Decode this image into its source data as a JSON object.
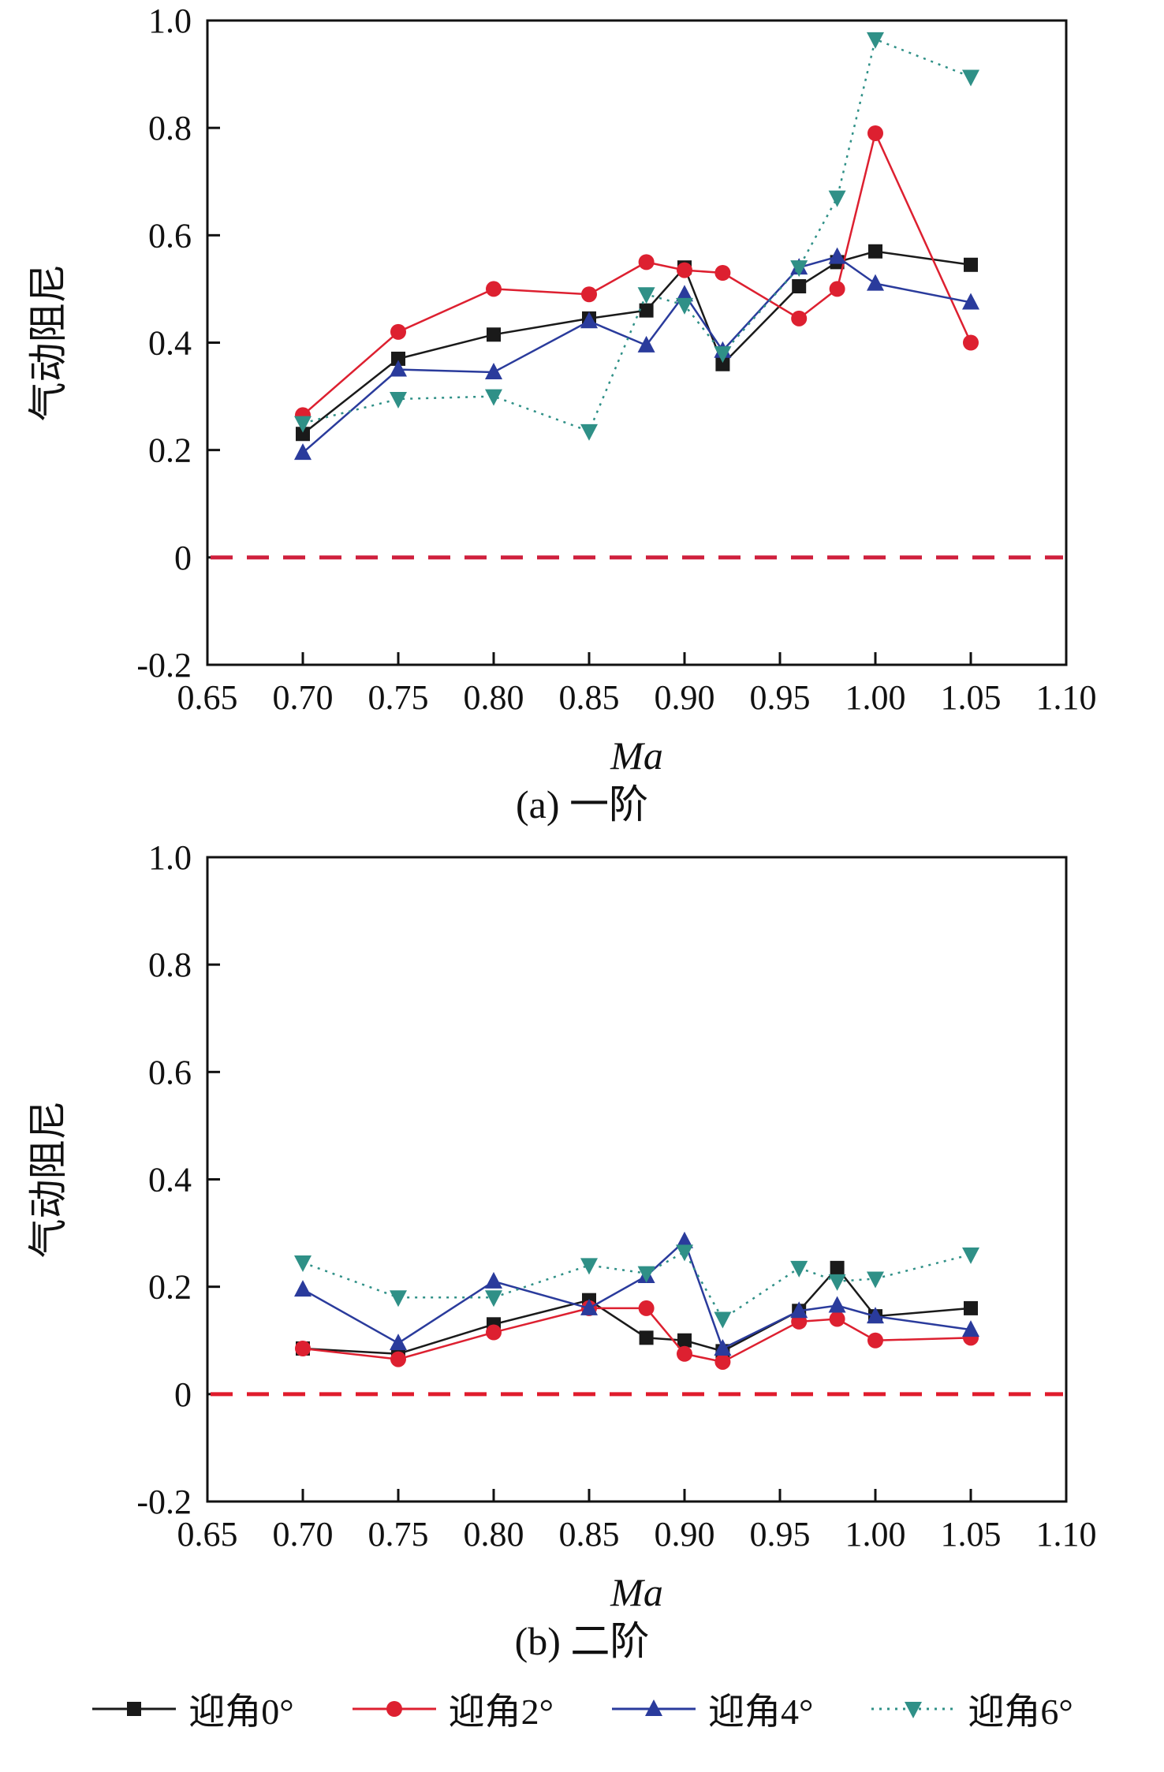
{
  "legend": [
    {
      "label": "迎角0°",
      "marker": "square",
      "color": "#1a1a1a",
      "line": "solid"
    },
    {
      "label": "迎角2°",
      "marker": "circle",
      "color": "#dd2030",
      "line": "solid"
    },
    {
      "label": "迎角4°",
      "marker": "triangle-up",
      "color": "#2a3b9c",
      "line": "solid"
    },
    {
      "label": "迎角6°",
      "marker": "triangle-down",
      "color": "#2f9087",
      "line": "dotted"
    }
  ],
  "chart_data": [
    {
      "type": "line",
      "title": "(a) 一阶",
      "xlabel": "Ma",
      "ylabel": "气动阻尼",
      "xlim": [
        0.65,
        1.1
      ],
      "ylim": [
        -0.2,
        1.0
      ],
      "xticks": [
        0.65,
        0.7,
        0.75,
        0.8,
        0.85,
        0.9,
        0.95,
        1.0,
        1.05,
        1.1
      ],
      "yticks": [
        -0.2,
        0,
        0.2,
        0.4,
        0.6,
        0.8,
        1.0
      ],
      "zero_line": true,
      "zero_line_color": "#cf1f3c",
      "x": [
        0.7,
        0.75,
        0.8,
        0.85,
        0.88,
        0.9,
        0.92,
        0.96,
        0.98,
        1.0,
        1.05
      ],
      "series": [
        {
          "name": "迎角0°",
          "marker": "square",
          "color": "#1a1a1a",
          "line": "solid",
          "values": [
            0.23,
            0.37,
            0.415,
            0.445,
            0.46,
            0.54,
            0.36,
            0.505,
            0.55,
            0.57,
            0.545
          ]
        },
        {
          "name": "迎角2°",
          "marker": "circle",
          "color": "#dd2030",
          "line": "solid",
          "values": [
            0.265,
            0.42,
            0.5,
            0.49,
            0.55,
            0.535,
            0.53,
            0.445,
            0.5,
            0.79,
            0.4
          ]
        },
        {
          "name": "迎角4°",
          "marker": "triangle-up",
          "color": "#2a3b9c",
          "line": "solid",
          "values": [
            0.195,
            0.35,
            0.345,
            0.44,
            0.395,
            0.49,
            0.385,
            0.54,
            0.56,
            0.51,
            0.475
          ]
        },
        {
          "name": "迎角6°",
          "marker": "triangle-down",
          "color": "#2f9087",
          "line": "dotted",
          "values": [
            0.25,
            0.295,
            0.3,
            0.235,
            0.49,
            0.47,
            0.38,
            0.54,
            0.67,
            0.965,
            0.895
          ]
        }
      ]
    },
    {
      "type": "line",
      "title": "(b) 二阶",
      "xlabel": "Ma",
      "ylabel": "气动阻尼",
      "xlim": [
        0.65,
        1.1
      ],
      "ylim": [
        -0.2,
        1.0
      ],
      "xticks": [
        0.65,
        0.7,
        0.75,
        0.8,
        0.85,
        0.9,
        0.95,
        1.0,
        1.05,
        1.1
      ],
      "yticks": [
        -0.2,
        0,
        0.2,
        0.4,
        0.6,
        0.8,
        1.0
      ],
      "zero_line": true,
      "zero_line_color": "#e01b2c",
      "x": [
        0.7,
        0.75,
        0.8,
        0.85,
        0.88,
        0.9,
        0.92,
        0.96,
        0.98,
        1.0,
        1.05
      ],
      "series": [
        {
          "name": "迎角0°",
          "marker": "square",
          "color": "#1a1a1a",
          "line": "solid",
          "values": [
            0.085,
            0.075,
            0.13,
            0.175,
            0.105,
            0.1,
            0.08,
            0.155,
            0.235,
            0.145,
            0.16
          ]
        },
        {
          "name": "迎角2°",
          "marker": "circle",
          "color": "#dd2030",
          "line": "solid",
          "values": [
            0.085,
            0.065,
            0.115,
            0.16,
            0.16,
            0.075,
            0.06,
            0.135,
            0.14,
            0.1,
            0.105
          ]
        },
        {
          "name": "迎角4°",
          "marker": "triangle-up",
          "color": "#2a3b9c",
          "line": "solid",
          "values": [
            0.195,
            0.095,
            0.21,
            0.16,
            0.22,
            0.285,
            0.085,
            0.155,
            0.165,
            0.145,
            0.12
          ]
        },
        {
          "name": "迎角6°",
          "marker": "triangle-down",
          "color": "#2f9087",
          "line": "dotted",
          "values": [
            0.245,
            0.18,
            0.18,
            0.24,
            0.225,
            0.265,
            0.14,
            0.235,
            0.21,
            0.215,
            0.26
          ]
        }
      ]
    }
  ]
}
